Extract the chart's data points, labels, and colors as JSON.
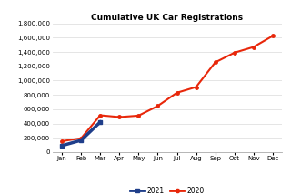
{
  "title": "Cumulative UK Car Registrations",
  "months": [
    "Jan",
    "Feb",
    "Mar",
    "Apr",
    "May",
    "Jun",
    "Jul",
    "Aug",
    "Sep",
    "Oct",
    "Nov",
    "Dec"
  ],
  "data_2020": [
    153000,
    193000,
    515000,
    490000,
    510000,
    645000,
    830000,
    910000,
    1255000,
    1390000,
    1470000,
    1625000
  ],
  "data_2021": [
    90000,
    165000,
    420000,
    null,
    null,
    null,
    null,
    null,
    null,
    null,
    null,
    null
  ],
  "color_2020": "#e8270a",
  "color_2021": "#1f3e8a",
  "ylim": [
    0,
    1800000
  ],
  "ytick_step": 200000,
  "background_color": "#ffffff",
  "grid_color": "#e0e0e0",
  "legend_labels": [
    "2021",
    "2020"
  ]
}
